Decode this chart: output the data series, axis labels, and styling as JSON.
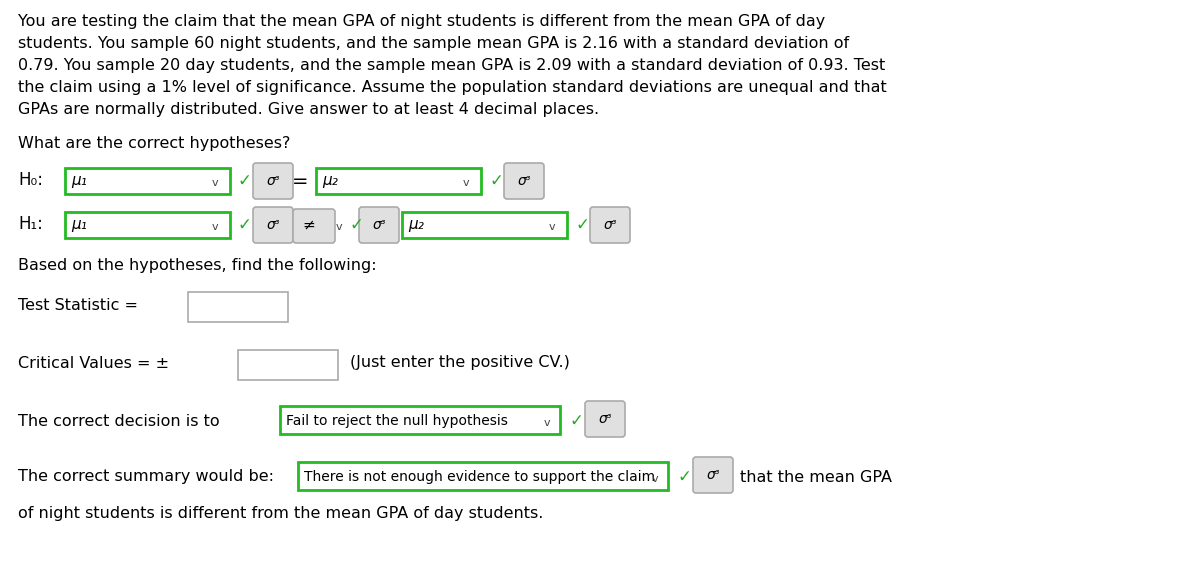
{
  "bg_color": "#ffffff",
  "text_color": "#000000",
  "green_color": "#22aa22",
  "border_green": "#22bb22",
  "sigma_text": "σᶟ",
  "neq_text": "≠",
  "checkmark": "✓",
  "paragraph_lines": [
    "You are testing the claim that the mean GPA of night students is different from the mean GPA of day",
    "students. You sample 60 night students, and the sample mean GPA is 2.16 with a standard deviation of",
    "0.79. You sample 20 day students, and the sample mean GPA is 2.09 with a standard deviation of 0.93. Test",
    "the claim using a 1% level of significance. Assume the population standard deviations are unequal and that",
    "GPAs are normally distributed. Give answer to at least 4 decimal places."
  ],
  "hypotheses_question": "What are the correct hypotheses?",
  "h0_label": "H₀:",
  "h1_label": "H₁:",
  "mu1_text": "μ₁",
  "mu2_text": "μ₂",
  "eq_text": "=",
  "based_text": "Based on the hypotheses, find the following:",
  "test_stat_label": "Test Statistic =",
  "critical_label": "Critical Values = ±",
  "critical_note": "(Just enter the positive CV.)",
  "decision_prefix": "The correct decision is to",
  "decision_value": "Fail to reject the null hypothesis ∨",
  "summary_prefix": "The correct summary would be:",
  "summary_value": "There is not enough evidence to support the claim ∨",
  "summary_end": "that the mean GPA",
  "summary_last": "of night students is different from the mean GPA of day students."
}
